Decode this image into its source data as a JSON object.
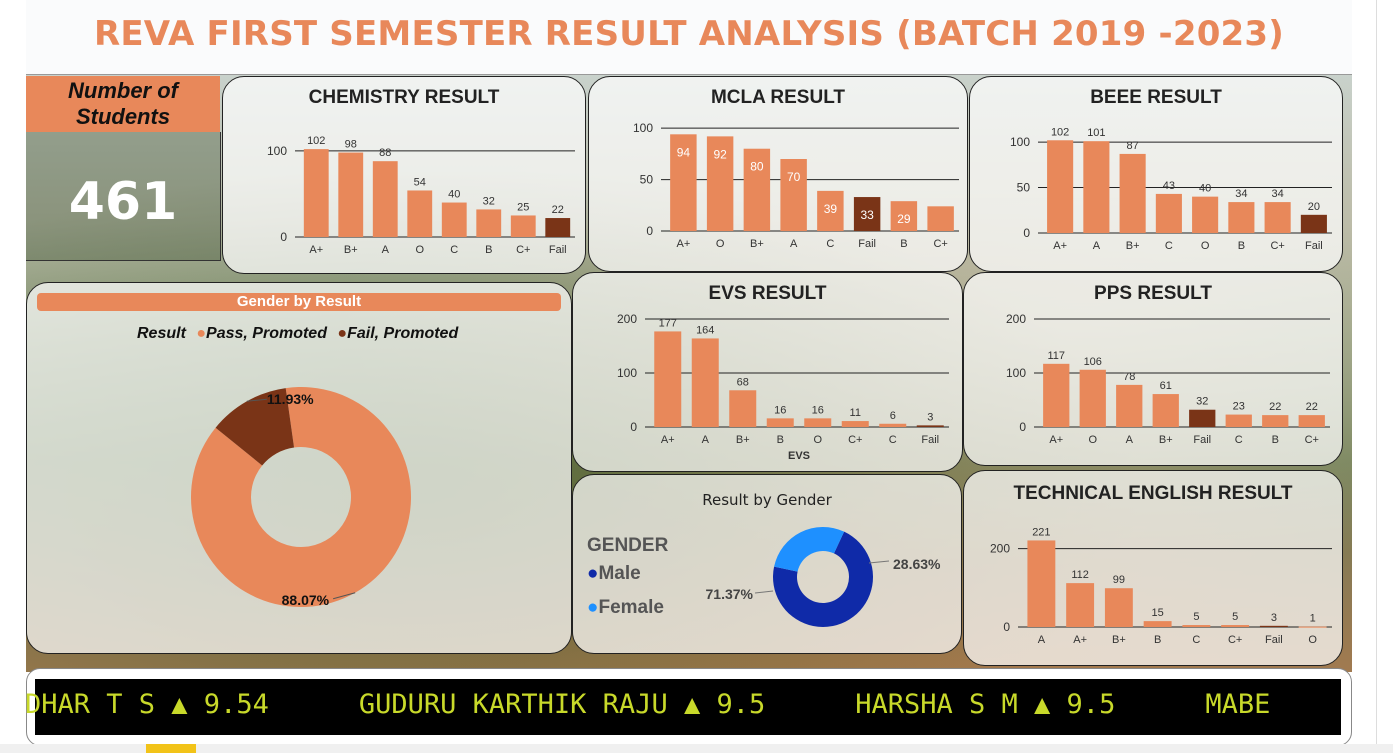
{
  "title": "REVA FIRST SEMESTER RESULT ANALYSIS (BATCH 2019 -2023)",
  "students": {
    "label_line1": "Number of",
    "label_line2": "Students",
    "value": "461"
  },
  "colors": {
    "accent": "#e8885a",
    "fail": "#7a3417",
    "male": "#0f2aa8",
    "female": "#1e90ff",
    "ticker": "#c8d92a"
  },
  "chart_data": [
    {
      "id": "chem",
      "type": "bar",
      "title": "CHEMISTRY RESULT",
      "categories": [
        "A+",
        "B+",
        "A",
        "O",
        "C",
        "B",
        "C+",
        "Fail"
      ],
      "values": [
        102,
        98,
        88,
        54,
        40,
        32,
        25,
        22
      ],
      "ylim": [
        0,
        130
      ],
      "yticks": [
        0,
        100
      ],
      "xlabel": ""
    },
    {
      "id": "mcla",
      "type": "bar",
      "title": "MCLA RESULT",
      "categories": [
        "A+",
        "O",
        "B+",
        "A",
        "C",
        "Fail",
        "B",
        "C+"
      ],
      "values": [
        94,
        92,
        80,
        70,
        39,
        33,
        29,
        24
      ],
      "ylim": [
        0,
        105
      ],
      "yticks": [
        0,
        50,
        100
      ],
      "xlabel": "",
      "labels": [
        "94",
        "92",
        "80",
        "70",
        "39",
        "33",
        "29",
        ""
      ]
    },
    {
      "id": "beee",
      "type": "bar",
      "title": "BEEE RESULT",
      "categories": [
        "A+",
        "A",
        "B+",
        "C",
        "O",
        "B",
        "C+",
        "Fail"
      ],
      "values": [
        102,
        101,
        87,
        43,
        40,
        34,
        34,
        20
      ],
      "ylim": [
        0,
        110
      ],
      "yticks": [
        0,
        50,
        100
      ],
      "xlabel": ""
    },
    {
      "id": "evs",
      "type": "bar",
      "title": "EVS RESULT",
      "categories": [
        "A+",
        "A",
        "B+",
        "B",
        "O",
        "C+",
        "C",
        "Fail"
      ],
      "values": [
        177,
        164,
        68,
        16,
        16,
        11,
        6,
        3
      ],
      "ylim": [
        0,
        200
      ],
      "yticks": [
        0,
        100,
        200
      ],
      "xlabel": "EVS"
    },
    {
      "id": "pps",
      "type": "bar",
      "title": "PPS RESULT",
      "categories": [
        "A+",
        "O",
        "A",
        "B+",
        "Fail",
        "C",
        "B",
        "C+"
      ],
      "values": [
        117,
        106,
        78,
        61,
        32,
        23,
        22,
        22
      ],
      "ylim": [
        0,
        200
      ],
      "yticks": [
        0,
        100,
        200
      ],
      "xlabel": ""
    },
    {
      "id": "te",
      "type": "bar",
      "title": "TECHNICAL ENGLISH RESULT",
      "categories": [
        "A",
        "A+",
        "B+",
        "B",
        "C",
        "C+",
        "Fail",
        "O"
      ],
      "values": [
        221,
        112,
        99,
        15,
        5,
        5,
        3,
        1
      ],
      "ylim": [
        0,
        240
      ],
      "yticks": [
        0,
        200
      ],
      "xlabel": ""
    },
    {
      "id": "gender_result",
      "type": "pie",
      "title": "Gender by Result",
      "legend_title": "Result",
      "series": [
        {
          "name": "Pass, Promoted",
          "value": 88.07,
          "label": "88.07%"
        },
        {
          "name": "Fail, Promoted",
          "value": 11.93,
          "label": "11.93%"
        }
      ]
    },
    {
      "id": "result_gender",
      "type": "pie",
      "title": "Result by Gender",
      "legend_title": "GENDER",
      "series": [
        {
          "name": "Male",
          "value": 71.37,
          "label": "71.37%"
        },
        {
          "name": "Female",
          "value": 28.63,
          "label": "28.63%"
        }
      ]
    }
  ],
  "ticker": {
    "items": [
      "DHAR T S ▲ 9.54",
      "GUDURU KARTHIK RAJU ▲ 9.5",
      "HARSHA S M ▲ 9.5",
      "MABE"
    ]
  }
}
